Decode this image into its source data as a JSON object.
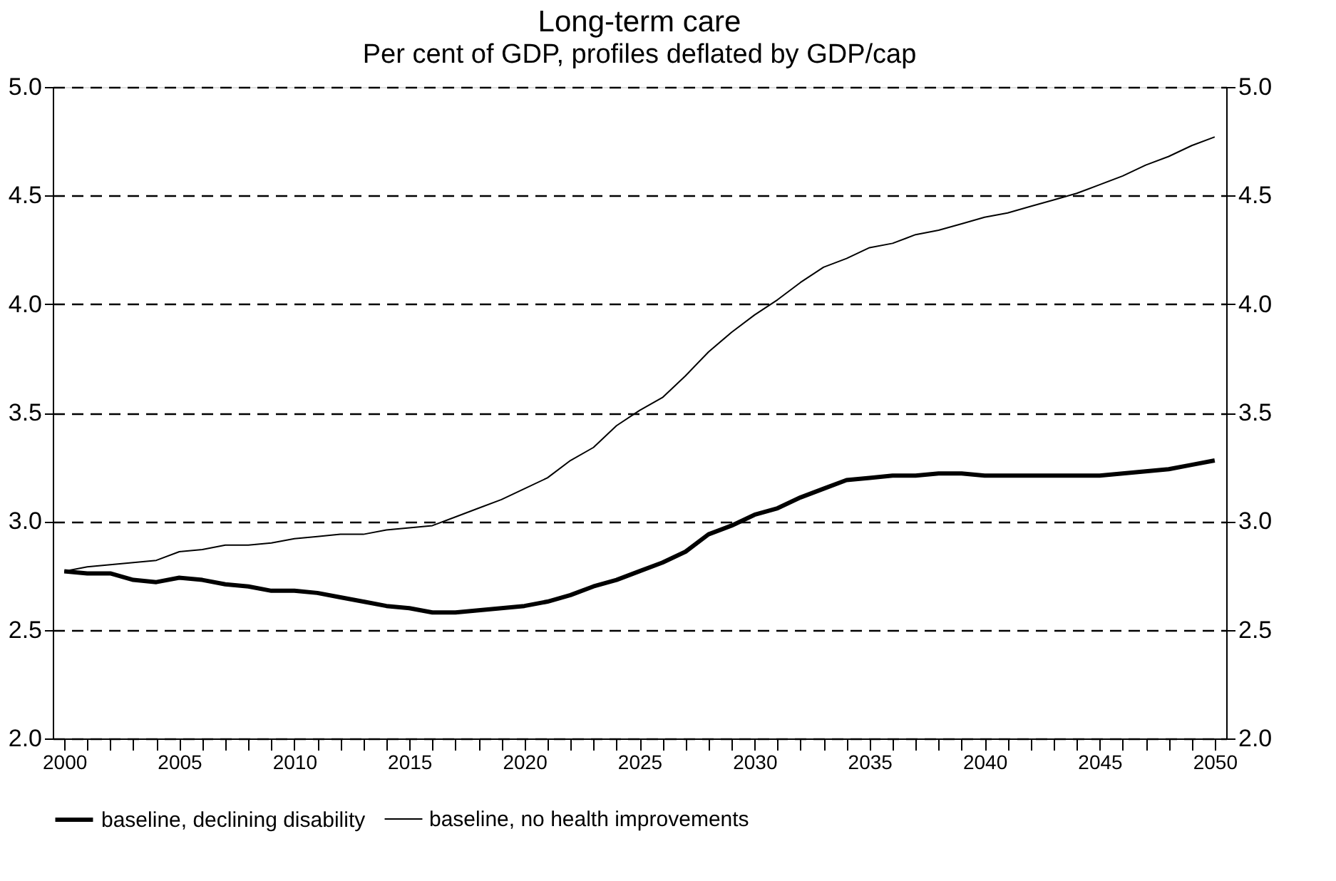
{
  "chart_data": {
    "type": "line",
    "title": "Long-term care",
    "subtitle": "Per cent of GDP, profiles deflated by GDP/cap",
    "x": [
      2000,
      2001,
      2002,
      2003,
      2004,
      2005,
      2006,
      2007,
      2008,
      2009,
      2010,
      2011,
      2012,
      2013,
      2014,
      2015,
      2016,
      2017,
      2018,
      2019,
      2020,
      2021,
      2022,
      2023,
      2024,
      2025,
      2026,
      2027,
      2028,
      2029,
      2030,
      2031,
      2032,
      2033,
      2034,
      2035,
      2036,
      2037,
      2038,
      2039,
      2040,
      2041,
      2042,
      2043,
      2044,
      2045,
      2046,
      2047,
      2048,
      2049,
      2050
    ],
    "series": [
      {
        "name": "baseline, declining disability",
        "color": "#000000",
        "values": [
          2.77,
          2.76,
          2.76,
          2.73,
          2.72,
          2.74,
          2.73,
          2.71,
          2.7,
          2.68,
          2.68,
          2.67,
          2.65,
          2.63,
          2.61,
          2.6,
          2.58,
          2.58,
          2.59,
          2.6,
          2.61,
          2.63,
          2.66,
          2.7,
          2.73,
          2.77,
          2.81,
          2.86,
          2.94,
          2.98,
          3.03,
          3.06,
          3.11,
          3.15,
          3.19,
          3.2,
          3.21,
          3.21,
          3.22,
          3.22,
          3.21,
          3.21,
          3.21,
          3.21,
          3.21,
          3.21,
          3.22,
          3.23,
          3.24,
          3.26,
          3.28
        ]
      },
      {
        "name": "baseline, no health improvements",
        "color": "#000000",
        "values": [
          2.77,
          2.79,
          2.8,
          2.81,
          2.82,
          2.86,
          2.87,
          2.89,
          2.89,
          2.9,
          2.92,
          2.93,
          2.94,
          2.94,
          2.96,
          2.97,
          2.98,
          3.02,
          3.06,
          3.1,
          3.15,
          3.2,
          3.28,
          3.34,
          3.44,
          3.51,
          3.57,
          3.67,
          3.78,
          3.87,
          3.95,
          4.02,
          4.1,
          4.17,
          4.21,
          4.26,
          4.28,
          4.32,
          4.34,
          4.37,
          4.4,
          4.42,
          4.45,
          4.48,
          4.51,
          4.55,
          4.59,
          4.64,
          4.68,
          4.73,
          4.77
        ]
      }
    ],
    "xlim": [
      1999.5,
      2050.5
    ],
    "xticks": [
      2000,
      {
        "value": 2001,
        "label": null
      },
      {
        "value": 2002,
        "label": null
      },
      {
        "value": 2003,
        "label": null
      },
      {
        "value": 2004,
        "label": null
      },
      2005,
      {
        "value": 2006,
        "label": null
      },
      {
        "value": 2007,
        "label": null
      },
      {
        "value": 2008,
        "label": null
      },
      {
        "value": 2009,
        "label": null
      },
      2010,
      {
        "value": 2011,
        "label": null
      },
      {
        "value": 2012,
        "label": null
      },
      {
        "value": 2013,
        "label": null
      },
      {
        "value": 2014,
        "label": null
      },
      2015,
      {
        "value": 2016,
        "label": null
      },
      {
        "value": 2017,
        "label": null
      },
      {
        "value": 2018,
        "label": null
      },
      {
        "value": 2019,
        "label": null
      },
      2020,
      {
        "value": 2021,
        "label": null
      },
      {
        "value": 2022,
        "label": null
      },
      {
        "value": 2023,
        "label": null
      },
      {
        "value": 2024,
        "label": null
      },
      2025,
      {
        "value": 2026,
        "label": null
      },
      {
        "value": 2027,
        "label": null
      },
      {
        "value": 2028,
        "label": null
      },
      {
        "value": 2029,
        "label": null
      },
      2030,
      {
        "value": 2031,
        "label": null
      },
      {
        "value": 2032,
        "label": null
      },
      {
        "value": 2033,
        "label": null
      },
      {
        "value": 2034,
        "label": null
      },
      2035,
      {
        "value": 2036,
        "label": null
      },
      {
        "value": 2037,
        "label": null
      },
      {
        "value": 2038,
        "label": null
      },
      {
        "value": 2039,
        "label": null
      },
      2040,
      {
        "value": 2041,
        "label": null
      },
      {
        "value": 2042,
        "label": null
      },
      {
        "value": 2043,
        "label": null
      },
      {
        "value": 2044,
        "label": null
      },
      2045,
      {
        "value": 2046,
        "label": null
      },
      {
        "value": 2047,
        "label": null
      },
      {
        "value": 2048,
        "label": null
      },
      {
        "value": 2049,
        "label": null
      },
      2050
    ],
    "ylim": [
      2.0,
      5.0
    ],
    "yticks": [
      {
        "value": 2,
        "label": "2.0"
      },
      {
        "value": 2.5,
        "label": "2.5"
      },
      {
        "value": 3,
        "label": "3.0"
      },
      {
        "value": 3.5,
        "label": "3.5"
      },
      {
        "value": 4,
        "label": "4.0"
      },
      {
        "value": 4.5,
        "label": "4.5"
      },
      {
        "value": 5,
        "label": "5.0"
      }
    ],
    "y2lim": [
      2.0,
      5.0
    ],
    "y2ticks": [
      {
        "value": 2,
        "label": "2.0"
      },
      {
        "value": 2.5,
        "label": "2.5"
      },
      {
        "value": 3,
        "label": "3.0"
      },
      {
        "value": 3.5,
        "label": "3.5"
      },
      {
        "value": 4,
        "label": "4.0"
      },
      {
        "value": 4.5,
        "label": "4.5"
      },
      {
        "value": 5,
        "label": "5.0"
      }
    ],
    "grid": "y",
    "legend": "bottom",
    "line_style": "solid",
    "marker": "none"
  }
}
